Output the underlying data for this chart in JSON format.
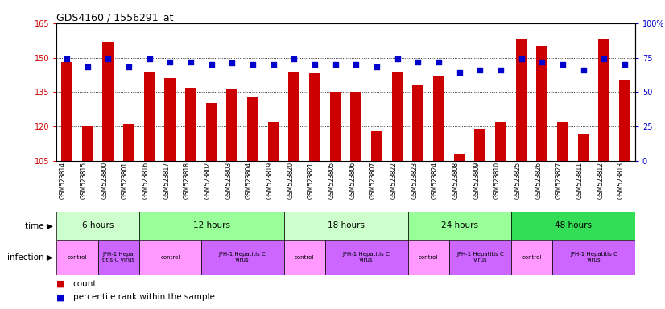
{
  "title": "GDS4160 / 1556291_at",
  "samples": [
    "GSM523814",
    "GSM523815",
    "GSM523800",
    "GSM523801",
    "GSM523816",
    "GSM523817",
    "GSM523818",
    "GSM523802",
    "GSM523803",
    "GSM523804",
    "GSM523819",
    "GSM523820",
    "GSM523821",
    "GSM523805",
    "GSM523806",
    "GSM523807",
    "GSM523822",
    "GSM523823",
    "GSM523824",
    "GSM523808",
    "GSM523809",
    "GSM523810",
    "GSM523825",
    "GSM523826",
    "GSM523827",
    "GSM523811",
    "GSM523812",
    "GSM523813"
  ],
  "counts": [
    148.0,
    120.0,
    157.0,
    121.0,
    144.0,
    141.0,
    137.0,
    130.0,
    136.5,
    133.0,
    122.0,
    144.0,
    143.0,
    135.0,
    135.0,
    118.0,
    144.0,
    138.0,
    142.0,
    108.0,
    119.0,
    122.0,
    158.0,
    155.0,
    122.0,
    117.0,
    158.0,
    140.0
  ],
  "percentiles": [
    74,
    68,
    74,
    68,
    74,
    72,
    72,
    70,
    71,
    70,
    70,
    74,
    70,
    70,
    70,
    68,
    74,
    72,
    72,
    64,
    66,
    66,
    74,
    72,
    70,
    66,
    74,
    70
  ],
  "bar_color": "#cc0000",
  "dot_color": "#0000cc",
  "ylim_left": [
    105,
    165
  ],
  "ylim_right": [
    0,
    100
  ],
  "yticks_left": [
    105,
    120,
    135,
    150,
    165
  ],
  "yticks_right": [
    0,
    25,
    50,
    75,
    100
  ],
  "ytick_labels_right": [
    "0",
    "25",
    "50",
    "75",
    "100%"
  ],
  "time_groups": [
    {
      "label": "6 hours",
      "start": 0,
      "end": 4,
      "color": "#ccffcc"
    },
    {
      "label": "12 hours",
      "start": 4,
      "end": 11,
      "color": "#99ff99"
    },
    {
      "label": "18 hours",
      "start": 11,
      "end": 17,
      "color": "#ccffcc"
    },
    {
      "label": "24 hours",
      "start": 17,
      "end": 22,
      "color": "#99ff99"
    },
    {
      "label": "48 hours",
      "start": 22,
      "end": 28,
      "color": "#33dd55"
    }
  ],
  "infection_groups": [
    {
      "label": "control",
      "start": 0,
      "end": 2,
      "color": "#ff99ff"
    },
    {
      "label": "JFH-1 Hepa\ntitis C Virus",
      "start": 2,
      "end": 4,
      "color": "#cc66ff"
    },
    {
      "label": "control",
      "start": 4,
      "end": 7,
      "color": "#ff99ff"
    },
    {
      "label": "JFH-1 Hepatitis C\nVirus",
      "start": 7,
      "end": 11,
      "color": "#cc66ff"
    },
    {
      "label": "control",
      "start": 11,
      "end": 13,
      "color": "#ff99ff"
    },
    {
      "label": "JFH-1 Hepatitis C\nVirus",
      "start": 13,
      "end": 17,
      "color": "#cc66ff"
    },
    {
      "label": "control",
      "start": 17,
      "end": 19,
      "color": "#ff99ff"
    },
    {
      "label": "JFH-1 Hepatitis C\nVirus",
      "start": 19,
      "end": 22,
      "color": "#cc66ff"
    },
    {
      "label": "control",
      "start": 22,
      "end": 24,
      "color": "#ff99ff"
    },
    {
      "label": "JFH-1 Hepatitis C\nVirus",
      "start": 24,
      "end": 28,
      "color": "#cc66ff"
    }
  ],
  "legend_count_color": "#cc0000",
  "legend_percentile_color": "#0000cc",
  "background_color": "#ffffff"
}
